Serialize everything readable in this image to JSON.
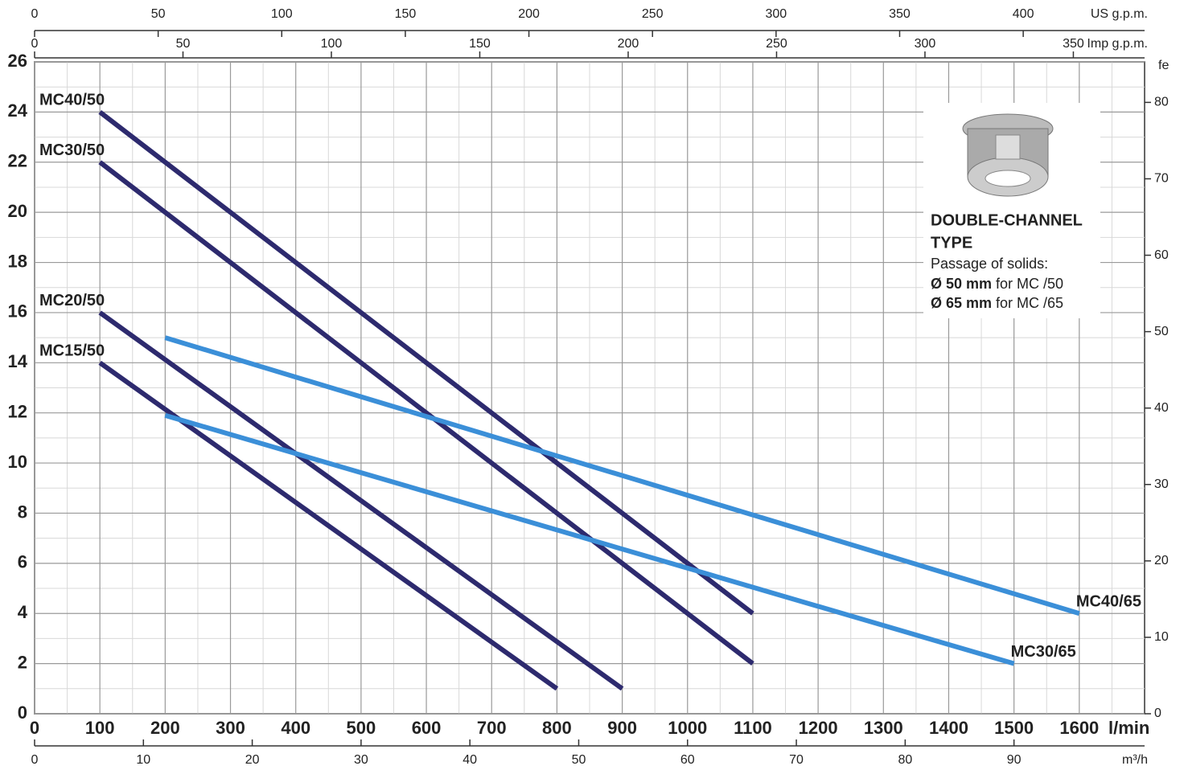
{
  "chart_data": {
    "type": "line",
    "xlabel": "l/min",
    "xlim": [
      0,
      1700
    ],
    "xticks": [
      0,
      100,
      200,
      300,
      400,
      500,
      600,
      700,
      800,
      900,
      1000,
      1100,
      1200,
      1300,
      1400,
      1500,
      1600
    ],
    "minor_xticks": [
      50,
      150,
      250,
      350,
      450,
      550,
      650,
      750,
      850,
      950,
      1050,
      1150,
      1250,
      1350,
      1450,
      1550,
      1650
    ],
    "ylim": [
      0,
      26
    ],
    "yticks": [
      0,
      2,
      4,
      6,
      8,
      10,
      12,
      14,
      16,
      18,
      20,
      22,
      24,
      26
    ],
    "minor_yticks": [
      1,
      3,
      5,
      7,
      9,
      11,
      13,
      15,
      17,
      19,
      21,
      23,
      25
    ],
    "y2label": "fe",
    "y2lim": [
      0,
      85.3
    ],
    "y2ticks": [
      0,
      10,
      20,
      30,
      40,
      50,
      60,
      70,
      80
    ],
    "grid": true,
    "secondary_x_axes": [
      {
        "label": "US g.p.m.",
        "position": "top",
        "xlim": [
          0,
          449.1
        ],
        "xticks": [
          0,
          50,
          100,
          150,
          200,
          250,
          300,
          350,
          400
        ]
      },
      {
        "label": "Imp g.p.m.",
        "position": "top",
        "xlim": [
          0,
          374
        ],
        "xticks": [
          0,
          50,
          100,
          150,
          200,
          250,
          300,
          350
        ]
      },
      {
        "label": "m³/h",
        "position": "bottom",
        "xlim": [
          0,
          102
        ],
        "xticks": [
          0,
          10,
          20,
          30,
          40,
          50,
          60,
          70,
          80,
          90
        ]
      }
    ],
    "series": [
      {
        "name": "MC40/50",
        "color": "#2d2a6e",
        "label_at": "start",
        "x": [
          100,
          1100
        ],
        "values": [
          24,
          4
        ]
      },
      {
        "name": "MC30/50",
        "color": "#2d2a6e",
        "label_at": "start",
        "x": [
          100,
          1100
        ],
        "values": [
          22,
          2
        ]
      },
      {
        "name": "MC20/50",
        "color": "#2d2a6e",
        "label_at": "start",
        "x": [
          100,
          900
        ],
        "values": [
          16,
          1
        ]
      },
      {
        "name": "MC15/50",
        "color": "#2d2a6e",
        "label_at": "start",
        "x": [
          100,
          800
        ],
        "values": [
          14,
          1
        ]
      },
      {
        "name": "MC40/65",
        "color": "#3b8fd8",
        "label_at": "end",
        "x": [
          200,
          1600
        ],
        "values": [
          15,
          4
        ]
      },
      {
        "name": "MC30/65",
        "color": "#3b8fd8",
        "label_at": "end",
        "x": [
          200,
          1500
        ],
        "values": [
          11.9,
          2
        ]
      }
    ],
    "note": {
      "title_lines": [
        "DOUBLE-CHANNEL",
        "TYPE"
      ],
      "text": "Passage of solids:",
      "items": [
        {
          "bold": "Ø 50 mm",
          "text": "for MC /50"
        },
        {
          "bold": "Ø 65 mm",
          "text": "for MC /65"
        }
      ]
    }
  }
}
